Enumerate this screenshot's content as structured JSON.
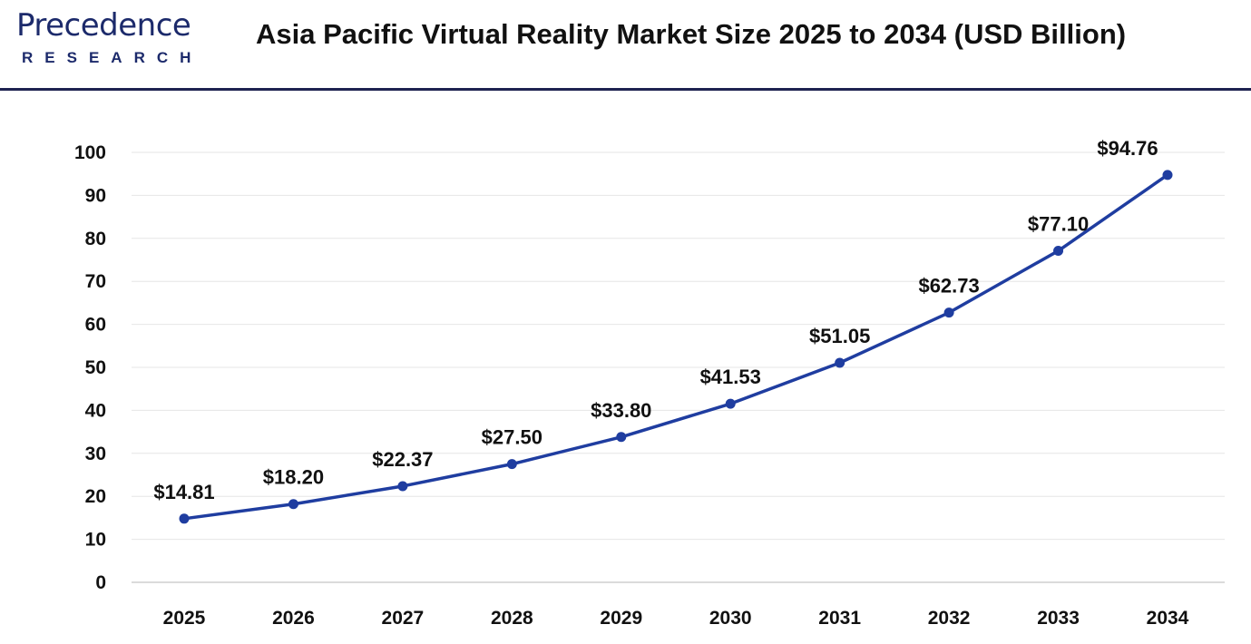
{
  "header": {
    "logo_text": "Precedence",
    "logo_subtext": "RESEARCH",
    "title": "Asia Pacific Virtual Reality Market Size 2025 to 2034 (USD Billion)"
  },
  "chart_data": {
    "type": "line",
    "title": "Asia Pacific Virtual Reality Market Size 2025 to 2034 (USD Billion)",
    "xlabel": "",
    "ylabel": "",
    "categories": [
      "2025",
      "2026",
      "2027",
      "2028",
      "2029",
      "2030",
      "2031",
      "2032",
      "2033",
      "2034"
    ],
    "values": [
      14.81,
      18.2,
      22.37,
      27.5,
      33.8,
      41.53,
      51.05,
      62.73,
      77.1,
      94.76
    ],
    "data_labels": [
      "$14.81",
      "$18.20",
      "$22.37",
      "$27.50",
      "$33.80",
      "$41.53",
      "$51.05",
      "$62.73",
      "$77.10",
      "$94.76"
    ],
    "ylim": [
      0,
      100
    ],
    "yticks": [
      "0",
      "10",
      "20",
      "30",
      "40",
      "50",
      "60",
      "70",
      "80",
      "90",
      "100"
    ],
    "grid": true,
    "legend": "none",
    "line_color": "#1f3da0"
  }
}
